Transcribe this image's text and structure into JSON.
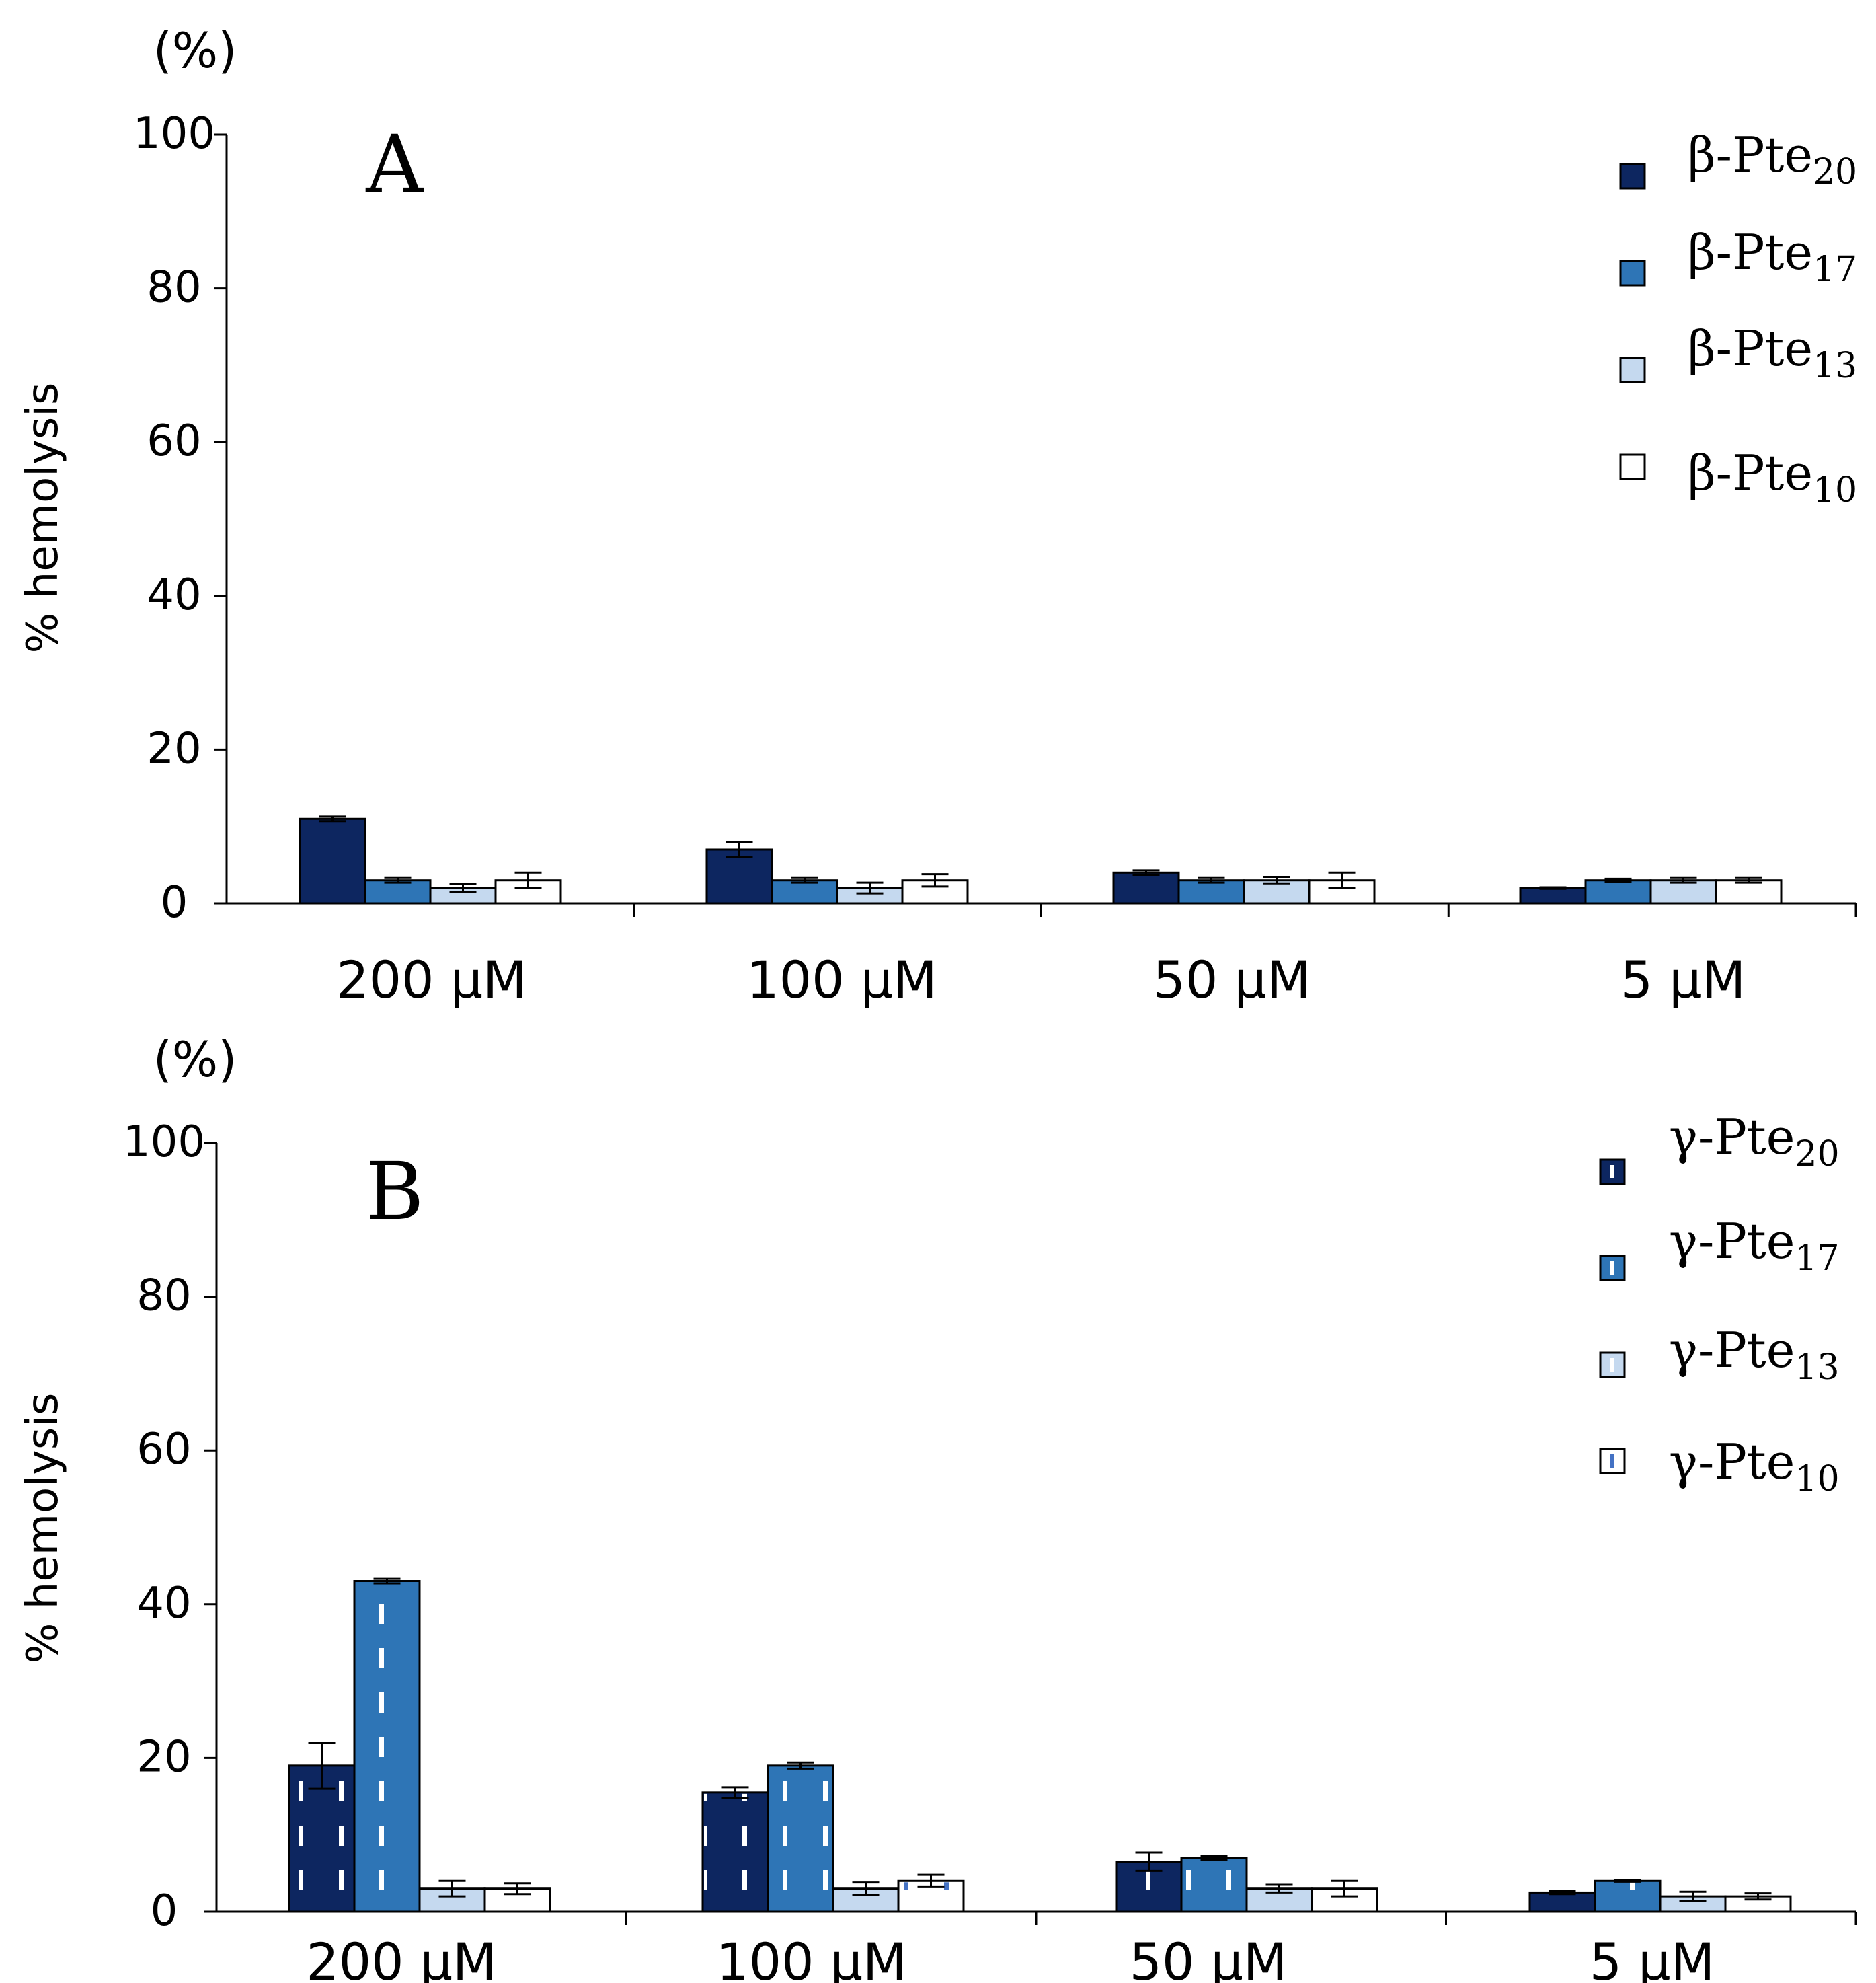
{
  "chart_data": [
    {
      "type": "bar",
      "panel_label": "A",
      "unit_label": "(%)",
      "ylabel": "% hemolysis",
      "ylim": [
        0,
        100
      ],
      "yticks": [
        "0",
        "20",
        "40",
        "60",
        "80",
        "100"
      ],
      "categories": [
        "200 μM",
        "100 μM",
        "50 μM",
        "5 μM"
      ],
      "legend_position": "top-right",
      "series": [
        {
          "name": "β-Pte",
          "subscript": "20",
          "color": "#0d2660",
          "pattern": "solid",
          "values": [
            11,
            7,
            4,
            2
          ],
          "errors": [
            0.3,
            1.0,
            0.3,
            0.1
          ]
        },
        {
          "name": "β-Pte",
          "subscript": "17",
          "color": "#2e75b6",
          "pattern": "solid",
          "values": [
            3,
            3,
            3,
            3
          ],
          "errors": [
            0.3,
            0.3,
            0.3,
            0.2
          ]
        },
        {
          "name": "β-Pte",
          "subscript": "13",
          "color": "#c5d9ef",
          "pattern": "solid",
          "values": [
            2,
            2,
            3,
            3
          ],
          "errors": [
            0.5,
            0.7,
            0.4,
            0.3
          ]
        },
        {
          "name": "β-Pte",
          "subscript": "10",
          "color": "#ffffff",
          "pattern": "solid",
          "values": [
            3,
            3,
            3,
            3
          ],
          "errors": [
            1.0,
            0.8,
            1.0,
            0.3
          ]
        }
      ]
    },
    {
      "type": "bar",
      "panel_label": "B",
      "unit_label": "(%)",
      "ylabel": "% hemolysis",
      "ylim": [
        0,
        100
      ],
      "yticks": [
        "0",
        "20",
        "40",
        "60",
        "80",
        "100"
      ],
      "categories": [
        "200 μM",
        "100 μM",
        "50 μM",
        "5 μM"
      ],
      "legend_position": "top-right",
      "series": [
        {
          "name": "γ-Pte",
          "subscript": "20",
          "color": "#0d2660",
          "pattern": "dashed-white",
          "values": [
            19,
            15.5,
            6.5,
            2.5
          ],
          "errors": [
            3.0,
            0.7,
            1.2,
            0.2
          ]
        },
        {
          "name": "γ-Pte",
          "subscript": "17",
          "color": "#2e75b6",
          "pattern": "dashed-white",
          "values": [
            43,
            19,
            7,
            4
          ],
          "errors": [
            0.3,
            0.4,
            0.3,
            0.1
          ]
        },
        {
          "name": "γ-Pte",
          "subscript": "13",
          "color": "#c5d9ef",
          "pattern": "dashed-white",
          "values": [
            3,
            3,
            3,
            2
          ],
          "errors": [
            1.0,
            0.8,
            0.5,
            0.6
          ]
        },
        {
          "name": "γ-Pte",
          "subscript": "10",
          "color": "#ffffff",
          "pattern": "dashed-blue",
          "values": [
            3,
            4,
            3,
            2
          ],
          "errors": [
            0.7,
            0.8,
            1.0,
            0.4
          ]
        }
      ]
    }
  ]
}
